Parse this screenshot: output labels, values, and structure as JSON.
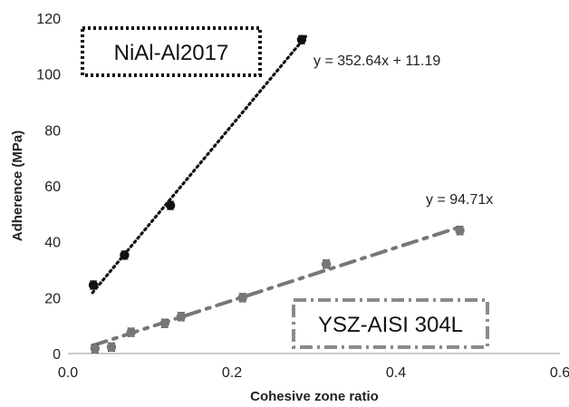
{
  "chart_data": {
    "type": "scatter",
    "xlabel": "Cohesive zone ratio",
    "ylabel": "Adherence (MPa)",
    "xlim": [
      0.0,
      0.6
    ],
    "ylim": [
      0,
      120
    ],
    "x_ticks": [
      "0.0",
      "0.2",
      "0.4",
      "0.6"
    ],
    "y_ticks": [
      "0",
      "20",
      "40",
      "60",
      "80",
      "100",
      "120"
    ],
    "grid": false,
    "series": [
      {
        "name": "NiAl-Al2017",
        "color": "#111111",
        "points": [
          {
            "x": 0.031,
            "y": 24.5,
            "err": 1.5
          },
          {
            "x": 0.069,
            "y": 35.2,
            "err": 1.5
          },
          {
            "x": 0.125,
            "y": 53.0,
            "err": 1.5
          },
          {
            "x": 0.285,
            "y": 112.3,
            "err": 1.5
          }
        ],
        "trendline": {
          "equation": "y = 352.64x + 11.19",
          "slope": 352.64,
          "intercept": 11.19,
          "x_range": [
            0.03,
            0.29
          ],
          "style": "dotted"
        }
      },
      {
        "name": "YSZ-AISI 304L",
        "color": "#777777",
        "points": [
          {
            "x": 0.033,
            "y": 1.8,
            "err": 1.5
          },
          {
            "x": 0.053,
            "y": 2.3,
            "err": 1.5
          },
          {
            "x": 0.077,
            "y": 7.6,
            "err": 1.5
          },
          {
            "x": 0.118,
            "y": 10.8,
            "err": 1.5
          },
          {
            "x": 0.138,
            "y": 13.2,
            "err": 1.5
          },
          {
            "x": 0.213,
            "y": 20.0,
            "err": 1.5
          },
          {
            "x": 0.315,
            "y": 32.0,
            "err": 1.5
          },
          {
            "x": 0.478,
            "y": 44.0,
            "err": 1.5
          }
        ],
        "trendline": {
          "equation": "y = 94.71x",
          "slope": 94.71,
          "intercept": 0,
          "x_range": [
            0.03,
            0.48
          ],
          "style": "dash-dot"
        }
      }
    ]
  }
}
